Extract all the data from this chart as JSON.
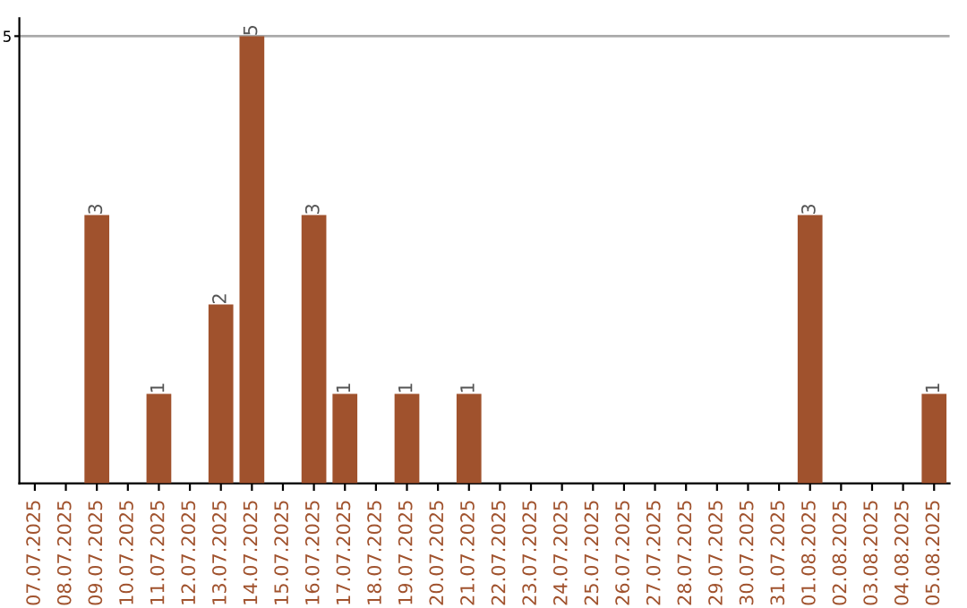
{
  "chart_data": {
    "type": "bar",
    "categories": [
      "07.07.2025",
      "08.07.2025",
      "09.07.2025",
      "10.07.2025",
      "11.07.2025",
      "12.07.2025",
      "13.07.2025",
      "14.07.2025",
      "15.07.2025",
      "16.07.2025",
      "17.07.2025",
      "18.07.2025",
      "19.07.2025",
      "20.07.2025",
      "21.07.2025",
      "22.07.2025",
      "23.07.2025",
      "24.07.2025",
      "25.07.2025",
      "26.07.2025",
      "27.07.2025",
      "28.07.2025",
      "29.07.2025",
      "30.07.2025",
      "31.07.2025",
      "01.08.2025",
      "02.08.2025",
      "03.08.2025",
      "04.08.2025",
      "05.08.2025"
    ],
    "values": [
      0,
      0,
      3,
      0,
      1,
      0,
      2,
      5,
      0,
      3,
      1,
      0,
      1,
      0,
      1,
      0,
      0,
      0,
      0,
      0,
      0,
      0,
      0,
      0,
      0,
      3,
      0,
      0,
      0,
      1
    ],
    "value_labels": [
      null,
      null,
      "3",
      null,
      "1",
      null,
      "2",
      "5",
      null,
      "3",
      "1",
      null,
      "1",
      null,
      "1",
      null,
      null,
      null,
      null,
      null,
      null,
      null,
      null,
      null,
      null,
      "3",
      null,
      null,
      null,
      "1"
    ],
    "color": "#a0522d",
    "ylim": [
      0,
      5.2
    ],
    "yticks": [
      5
    ],
    "grid": "y"
  }
}
